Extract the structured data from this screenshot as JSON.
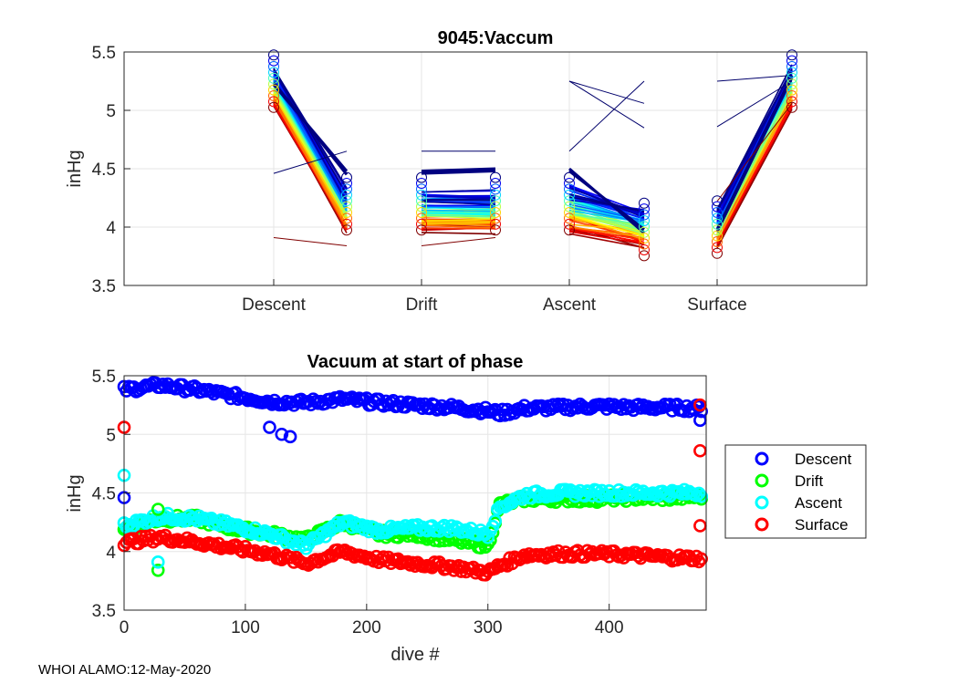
{
  "footer": "WHOI ALAMO:12-May-2020",
  "chart_data": [
    {
      "type": "line",
      "title": "9045:Vaccum",
      "ylabel": "inHg",
      "xlabel": "",
      "categories": [
        "Descent",
        "Drift",
        "Ascent",
        "Surface"
      ],
      "ylim": [
        3.5,
        5.5
      ],
      "yticks": [
        3.5,
        4,
        4.5,
        5,
        5.5
      ],
      "grid": true,
      "description": "Per-dive vacuum at start and end of each phase, colored by dive index (jet colormap)",
      "segments": [
        {
          "name": "Descent",
          "start": 5.25,
          "end": 4.2
        },
        {
          "name": "Drift",
          "start": 4.2,
          "end": 4.2
        },
        {
          "name": "Ascent",
          "start": 4.2,
          "end": 3.98
        },
        {
          "name": "Surface",
          "start": 4.0,
          "end": 5.25
        }
      ]
    },
    {
      "type": "scatter",
      "title": "Vacuum at start of phase",
      "xlabel": "dive #",
      "ylabel": "inHg",
      "xlim": [
        0,
        480
      ],
      "ylim": [
        3.5,
        5.5
      ],
      "xticks": [
        0,
        100,
        200,
        300,
        400
      ],
      "yticks": [
        3.5,
        4,
        4.5,
        5,
        5.5
      ],
      "grid": true,
      "legend_position": "right",
      "series": [
        {
          "name": "Descent",
          "color": "#0000ff",
          "x": [
            0,
            30,
            60,
            90,
            120,
            150,
            180,
            210,
            240,
            270,
            300,
            310,
            330,
            360,
            390,
            420,
            450,
            475
          ],
          "y": [
            5.38,
            5.42,
            5.38,
            5.33,
            5.28,
            5.27,
            5.3,
            5.27,
            5.25,
            5.23,
            5.2,
            5.18,
            5.22,
            5.23,
            5.24,
            5.23,
            5.23,
            5.22
          ]
        },
        {
          "name": "Drift",
          "color": "#00ff00",
          "x": [
            0,
            30,
            60,
            90,
            120,
            150,
            180,
            210,
            240,
            270,
            300,
            310,
            330,
            360,
            390,
            420,
            450,
            475
          ],
          "y": [
            4.2,
            4.28,
            4.28,
            4.2,
            4.15,
            4.1,
            4.25,
            4.15,
            4.15,
            4.1,
            4.05,
            4.4,
            4.45,
            4.45,
            4.45,
            4.46,
            4.46,
            4.47
          ]
        },
        {
          "name": "Ascent",
          "color": "#00ffff",
          "x": [
            0,
            30,
            60,
            90,
            120,
            150,
            180,
            210,
            240,
            270,
            300,
            310,
            330,
            360,
            390,
            420,
            450,
            475
          ],
          "y": [
            4.22,
            4.3,
            4.28,
            4.22,
            4.15,
            4.05,
            4.25,
            4.18,
            4.2,
            4.2,
            4.15,
            4.38,
            4.48,
            4.5,
            4.5,
            4.5,
            4.5,
            4.5
          ]
        },
        {
          "name": "Surface",
          "color": "#ff0000",
          "x": [
            0,
            30,
            60,
            90,
            120,
            150,
            180,
            210,
            240,
            270,
            300,
            310,
            330,
            360,
            390,
            420,
            450,
            475
          ],
          "y": [
            4.08,
            4.12,
            4.08,
            4.03,
            3.98,
            3.9,
            4.0,
            3.93,
            3.9,
            3.87,
            3.82,
            3.88,
            3.97,
            3.98,
            3.98,
            3.97,
            3.95,
            3.94
          ]
        }
      ]
    }
  ]
}
